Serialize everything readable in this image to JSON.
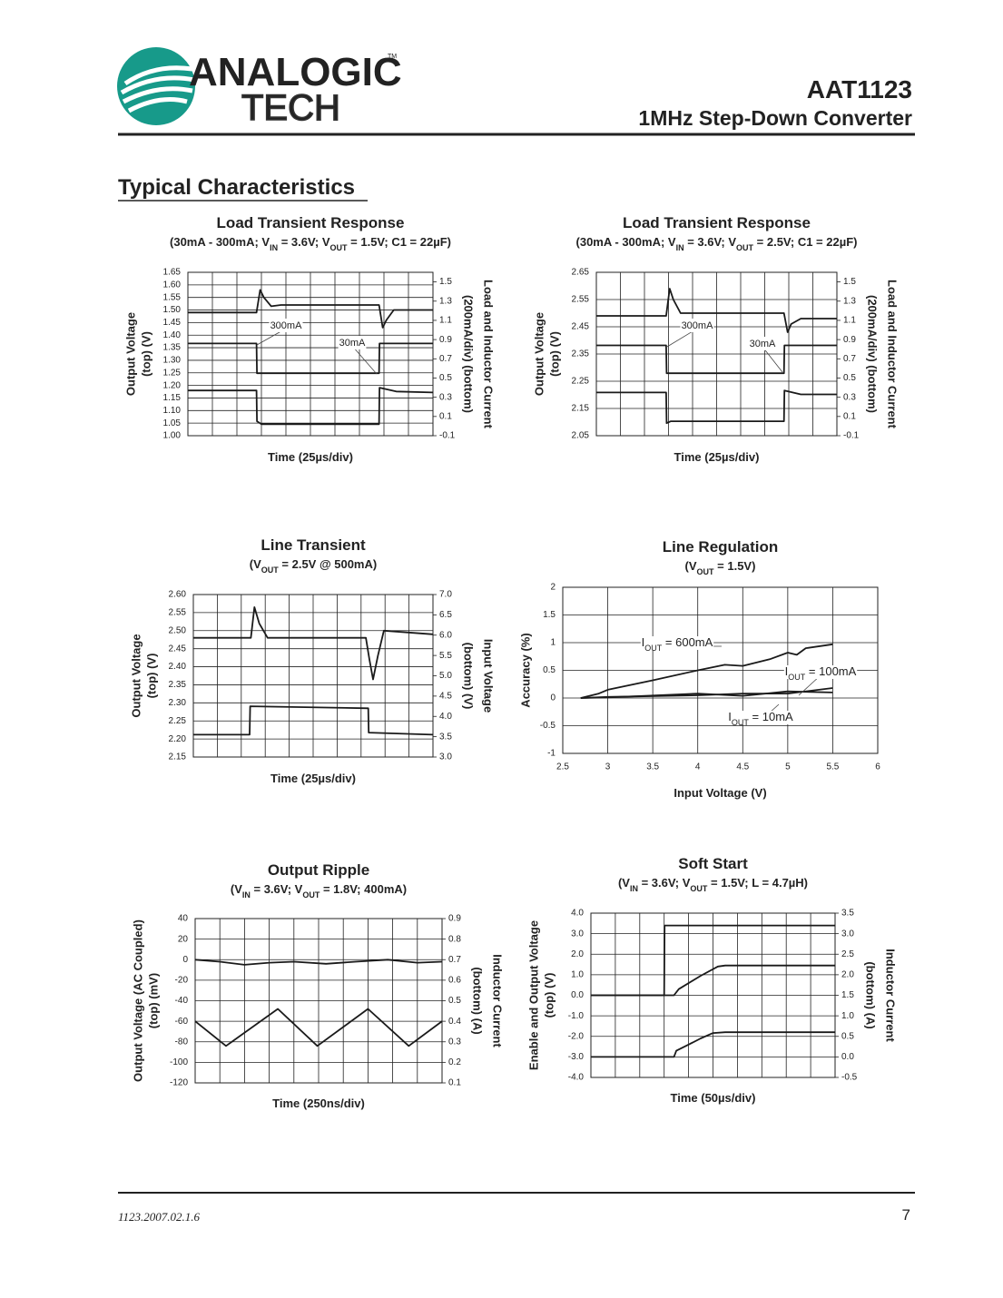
{
  "header": {
    "logo": {
      "name1": "ANALOGIC",
      "name2": "TECH",
      "tm": "TM"
    },
    "part": "AAT1123",
    "subtitle": "1MHz Step-Down Converter"
  },
  "section": "Typical Characteristics",
  "footer": {
    "doc": "1123.2007.02.1.6",
    "page": "7"
  },
  "chart_data": [
    {
      "type": "line",
      "title": "Load Transient Response",
      "subtitle": [
        "(30mA - 300mA; V",
        "IN",
        " = 3.6V; V",
        "OUT",
        " = 1.5V; C1 = 22µF)"
      ],
      "ylabel": [
        "Output Voltage",
        "(top) (V)"
      ],
      "y2label": [
        "Load and Inductor Current",
        "(200mA/div) (bottom)"
      ],
      "xlabel": "Time (25µs/div)",
      "xlim": [
        0,
        10
      ],
      "xticks": [
        0,
        1,
        2,
        3,
        4,
        5,
        6,
        7,
        8,
        9,
        10
      ],
      "xtick_labels": false,
      "ylim": [
        1,
        1.65
      ],
      "yticks": [
        {
          "value": 1,
          "label": "1.00"
        },
        1.05,
        {
          "value": 1.1,
          "label": "1.10"
        },
        1.15,
        {
          "value": 1.2,
          "label": "1.20"
        },
        1.25,
        {
          "value": 1.3,
          "label": "1.30"
        },
        1.35,
        {
          "value": 1.4,
          "label": "1.40"
        },
        1.45,
        {
          "value": 1.5,
          "label": "1.50"
        },
        1.55,
        {
          "value": 1.6,
          "label": "1.60"
        },
        1.65
      ],
      "y2lim": [
        -0.1,
        1.6
      ],
      "y2ticks": [
        -0.1,
        0.1,
        0.3,
        0.5,
        0.7,
        0.9,
        1.1,
        1.3,
        1.5
      ],
      "grid": true,
      "annotations": [
        [
          "300mA"
        ],
        [
          "30mA"
        ]
      ],
      "series": [
        {
          "color": "#1a1a1a",
          "x": [
            0,
            2.8,
            2.95,
            3.1,
            3.4,
            3.8,
            7.8,
            7.95,
            8.1,
            8.4,
            10
          ],
          "values": [
            1.49,
            1.49,
            1.58,
            1.55,
            1.515,
            1.52,
            1.52,
            1.43,
            1.46,
            1.5,
            1.5
          ]
        },
        {
          "color": "#1a1a1a",
          "axis": "y2",
          "x": [
            0,
            2.8,
            2.82,
            7.8,
            7.82,
            10
          ],
          "values": [
            0.86,
            0.86,
            0.55,
            0.55,
            0.86,
            0.86
          ]
        },
        {
          "color": "#1a1a1a",
          "axis": "y2",
          "x": [
            0,
            2.8,
            2.82,
            3,
            7.8,
            7.82,
            8.5,
            10
          ],
          "values": [
            0.37,
            0.37,
            0.05,
            0.02,
            0.02,
            0.4,
            0.36,
            0.35
          ]
        }
      ]
    },
    {
      "type": "line",
      "title": "Load Transient Response",
      "subtitle": [
        "(30mA - 300mA; V",
        "IN",
        " = 3.6V; V",
        "OUT",
        " = 2.5V; C1 = 22µF)"
      ],
      "ylabel": [
        "Output Voltage",
        "(top) (V)"
      ],
      "y2label": [
        "Load and Inductor Current",
        "(200mA/div) (bottom)"
      ],
      "xlabel": "Time (25µs/div)",
      "xlim": [
        0,
        10
      ],
      "xticks": [
        0,
        1,
        2,
        3,
        4,
        5,
        6,
        7,
        8,
        9,
        10
      ],
      "xtick_labels": false,
      "ylim": [
        2.05,
        2.65
      ],
      "yticks": [
        2.05,
        2.15,
        2.25,
        2.35,
        2.45,
        2.55,
        2.65
      ],
      "y2lim": [
        -0.1,
        1.6
      ],
      "y2ticks": [
        -0.1,
        0.1,
        0.3,
        0.5,
        0.7,
        0.9,
        1.1,
        1.3,
        1.5
      ],
      "grid": true,
      "annotations": [
        [
          "300mA"
        ],
        [
          "30mA"
        ]
      ],
      "series": [
        {
          "color": "#1a1a1a",
          "x": [
            0,
            2.9,
            3.05,
            3.2,
            3.5,
            4,
            7.8,
            7.95,
            8.1,
            8.5,
            10
          ],
          "values": [
            2.49,
            2.49,
            2.59,
            2.55,
            2.5,
            2.5,
            2.5,
            2.43,
            2.46,
            2.48,
            2.48
          ]
        },
        {
          "color": "#1a1a1a",
          "axis": "y2",
          "x": [
            0,
            2.9,
            2.92,
            7.8,
            7.82,
            10
          ],
          "values": [
            0.84,
            0.84,
            0.55,
            0.55,
            0.84,
            0.84
          ]
        },
        {
          "color": "#1a1a1a",
          "axis": "y2",
          "x": [
            0,
            2.9,
            2.92,
            3.1,
            7.8,
            7.82,
            8.5,
            10
          ],
          "values": [
            0.35,
            0.35,
            0.03,
            0.05,
            0.05,
            0.37,
            0.33,
            0.33
          ]
        }
      ]
    },
    {
      "type": "line",
      "title": "Line Transient",
      "subtitle": [
        "(V",
        "OUT",
        " = 2.5V @ 500mA)"
      ],
      "ylabel": [
        "Output Voltage",
        "(top) (V)"
      ],
      "y2label": [
        "Input Voltage",
        "(bottom) (V)"
      ],
      "xlabel": "Time (25µs/div)",
      "xlim": [
        0,
        10
      ],
      "xticks": [
        0,
        1,
        2,
        3,
        4,
        5,
        6,
        7,
        8,
        9,
        10
      ],
      "xtick_labels": false,
      "ylim": [
        2.15,
        2.6
      ],
      "yticks": [
        2.15,
        {
          "value": 2.2,
          "label": "2.20"
        },
        2.25,
        {
          "value": 2.3,
          "label": "2.30"
        },
        2.35,
        {
          "value": 2.4,
          "label": "2.40"
        },
        2.45,
        {
          "value": 2.5,
          "label": "2.50"
        },
        2.55,
        {
          "value": 2.6,
          "label": "2.60"
        }
      ],
      "y2lim": [
        3,
        7
      ],
      "y2ticks": [
        {
          "value": 3,
          "label": "3.0"
        },
        3.5,
        {
          "value": 4,
          "label": "4.0"
        },
        4.5,
        {
          "value": 5,
          "label": "5.0"
        },
        5.5,
        {
          "value": 6,
          "label": "6.0"
        },
        6.5,
        {
          "value": 7,
          "label": "7.0"
        }
      ],
      "grid": true,
      "series": [
        {
          "color": "#1a1a1a",
          "x": [
            0,
            2.4,
            2.55,
            2.75,
            3.1,
            7.2,
            7.35,
            7.5,
            7.7,
            7.95,
            10
          ],
          "values": [
            2.48,
            2.48,
            2.565,
            2.52,
            2.48,
            2.48,
            2.42,
            2.365,
            2.43,
            2.5,
            2.49
          ]
        },
        {
          "color": "#1a1a1a",
          "axis": "y2",
          "x": [
            0,
            2.35,
            2.37,
            7.3,
            7.32,
            10
          ],
          "values": [
            3.55,
            3.55,
            4.25,
            4.2,
            3.6,
            3.55
          ]
        }
      ]
    },
    {
      "type": "line",
      "title": "Line Regulation",
      "subtitle": [
        "(V",
        "OUT",
        " = 1.5V)"
      ],
      "ylabel": [
        "Accuracy (%)"
      ],
      "xlabel": "Input Voltage (V)",
      "xlim": [
        2.5,
        6
      ],
      "xticks": [
        2.5,
        3,
        3.5,
        4,
        4.5,
        5,
        5.5,
        6
      ],
      "ylim": [
        -1,
        2
      ],
      "yticks": [
        -1,
        -0.5,
        0,
        0.5,
        1,
        1.5,
        2
      ],
      "grid": true,
      "annotations": [
        [
          "I",
          "OUT",
          " = 600mA"
        ],
        [
          "I",
          "OUT",
          " = 100mA"
        ],
        [
          "I",
          "OUT",
          " = 10mA"
        ]
      ],
      "series": [
        {
          "color": "#1a1a1a",
          "x": [
            2.7,
            2.9,
            3,
            3.5,
            4,
            4.3,
            4.5,
            4.8,
            5,
            5.1,
            5.2,
            5.5
          ],
          "values": [
            0,
            0.08,
            0.15,
            0.32,
            0.5,
            0.6,
            0.58,
            0.7,
            0.82,
            0.78,
            0.9,
            0.97
          ]
        },
        {
          "color": "#1a1a1a",
          "x": [
            2.7,
            3,
            4,
            4.5,
            5,
            5.5
          ],
          "values": [
            0,
            0.02,
            0.05,
            0.08,
            0.08,
            0.18
          ]
        },
        {
          "color": "#1a1a1a",
          "x": [
            2.7,
            3,
            4,
            4.5,
            5,
            5.5
          ],
          "values": [
            0,
            0.01,
            0.08,
            0.04,
            0.12,
            0.1
          ]
        }
      ]
    },
    {
      "type": "line",
      "title": "Output Ripple",
      "subtitle": [
        "(V",
        "IN",
        " = 3.6V; V",
        "OUT",
        " = 1.8V; 400mA)"
      ],
      "ylabel": [
        "Output Voltage (AC Coupled)",
        "(top) (mV)"
      ],
      "y2label": [
        "Inductor Current",
        "(bottom) (A)"
      ],
      "xlabel": "Time (250ns/div)",
      "xlim": [
        0,
        10
      ],
      "xticks": [
        0,
        1,
        2,
        3,
        4,
        5,
        6,
        7,
        8,
        9,
        10
      ],
      "xtick_labels": false,
      "ylim": [
        -120,
        40
      ],
      "yticks": [
        -120,
        -100,
        -80,
        -60,
        -40,
        -20,
        0,
        20,
        40
      ],
      "y2lim": [
        0.1,
        0.9
      ],
      "y2ticks": [
        0.1,
        0.2,
        0.3,
        0.4,
        0.5,
        0.6,
        0.7,
        0.8,
        0.9
      ],
      "grid": true,
      "series": [
        {
          "color": "#1a1a1a",
          "x": [
            0,
            1,
            2,
            3,
            4,
            5.3,
            6.5,
            7.8,
            9,
            10
          ],
          "values": [
            0,
            -2,
            -5,
            -3,
            -2,
            -4,
            -2,
            0,
            -3,
            -2
          ]
        },
        {
          "color": "#1a1a1a",
          "axis": "y2",
          "x": [
            0,
            1.25,
            3.35,
            4.95,
            7,
            8.65,
            10
          ],
          "values": [
            0.4,
            0.28,
            0.46,
            0.28,
            0.46,
            0.28,
            0.4
          ]
        }
      ]
    },
    {
      "type": "line",
      "title": "Soft Start",
      "subtitle": [
        "(V",
        "IN",
        " = 3.6V; V",
        "OUT",
        " = 1.5V; L = 4.7µH)"
      ],
      "ylabel": [
        "Enable and Output Voltage",
        "(top) (V)"
      ],
      "y2label": [
        "Inductor Current",
        "(bottom) (A)"
      ],
      "xlabel": "Time (50µs/div)",
      "xlim": [
        0,
        10
      ],
      "xticks": [
        0,
        1,
        2,
        3,
        4,
        5,
        6,
        7,
        8,
        9,
        10
      ],
      "xtick_labels": false,
      "ylim": [
        -4,
        4
      ],
      "yticks": [
        {
          "value": -4,
          "label": "-4.0"
        },
        {
          "value": -3,
          "label": "-3.0"
        },
        {
          "value": -2,
          "label": "-2.0"
        },
        {
          "value": -1,
          "label": "-1.0"
        },
        {
          "value": 0,
          "label": "0.0"
        },
        {
          "value": 1,
          "label": "1.0"
        },
        {
          "value": 2,
          "label": "2.0"
        },
        {
          "value": 3,
          "label": "3.0"
        },
        {
          "value": 4,
          "label": "4.0"
        }
      ],
      "y2lim": [
        -0.5,
        3.5
      ],
      "y2ticks": [
        -0.5,
        {
          "value": 0,
          "label": "0.0"
        },
        0.5,
        {
          "value": 1,
          "label": "1.0"
        },
        1.5,
        {
          "value": 2,
          "label": "2.0"
        },
        2.5,
        {
          "value": 3,
          "label": "3.0"
        },
        3.5
      ],
      "grid": true,
      "series": [
        {
          "color": "#1a1a1a",
          "x": [
            0,
            3,
            3.02,
            10
          ],
          "values": [
            0,
            0,
            3.4,
            3.4
          ]
        },
        {
          "color": "#1a1a1a",
          "x": [
            0,
            3.4,
            3.6,
            4.5,
            5.2,
            5.5,
            10
          ],
          "values": [
            0,
            0,
            0.3,
            0.95,
            1.4,
            1.45,
            1.45
          ]
        },
        {
          "color": "#1a1a1a",
          "axis": "y2",
          "x": [
            0,
            3.4,
            3.5,
            4,
            4.5,
            5,
            5.5,
            10
          ],
          "values": [
            0,
            0,
            0.15,
            0.3,
            0.45,
            0.58,
            0.6,
            0.6
          ]
        }
      ]
    }
  ]
}
